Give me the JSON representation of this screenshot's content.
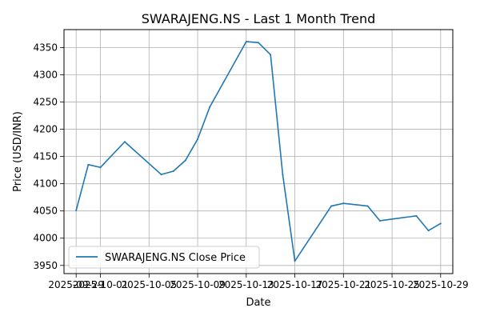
{
  "chart_data": {
    "type": "line",
    "title": "SWARAJENG.NS - Last 1 Month Trend",
    "xlabel": "Date",
    "ylabel": "Price (USD/INR)",
    "x_ticks": [
      "2025-09-29",
      "2025-10-01",
      "2025-10-05",
      "2025-10-09",
      "2025-10-13",
      "2025-10-17",
      "2025-10-21",
      "2025-10-25",
      "2025-10-29"
    ],
    "y_ticks": [
      3950,
      4000,
      4050,
      4100,
      4150,
      4200,
      4250,
      4300,
      4350
    ],
    "xlim": [
      "2025-09-28",
      "2025-10-30"
    ],
    "ylim": [
      3935,
      4383
    ],
    "grid": true,
    "legend_position": "lower-left",
    "series": [
      {
        "name": "SWARAJENG.NS Close Price",
        "color": "#1f77b4",
        "points": [
          {
            "x": "2025-09-29",
            "y": 4051
          },
          {
            "x": "2025-09-30",
            "y": 4135
          },
          {
            "x": "2025-10-01",
            "y": 4130
          },
          {
            "x": "2025-10-03",
            "y": 4177
          },
          {
            "x": "2025-10-06",
            "y": 4117
          },
          {
            "x": "2025-10-07",
            "y": 4123
          },
          {
            "x": "2025-10-08",
            "y": 4143
          },
          {
            "x": "2025-10-09",
            "y": 4182
          },
          {
            "x": "2025-10-10",
            "y": 4241
          },
          {
            "x": "2025-10-13",
            "y": 4361
          },
          {
            "x": "2025-10-14",
            "y": 4359
          },
          {
            "x": "2025-10-15",
            "y": 4337
          },
          {
            "x": "2025-10-16",
            "y": 4117
          },
          {
            "x": "2025-10-17",
            "y": 3958
          },
          {
            "x": "2025-10-20",
            "y": 4059
          },
          {
            "x": "2025-10-21",
            "y": 4064
          },
          {
            "x": "2025-10-23",
            "y": 4059
          },
          {
            "x": "2025-10-24",
            "y": 4032
          },
          {
            "x": "2025-10-27",
            "y": 4041
          },
          {
            "x": "2025-10-28",
            "y": 4014
          },
          {
            "x": "2025-10-29",
            "y": 4027
          }
        ]
      }
    ]
  }
}
